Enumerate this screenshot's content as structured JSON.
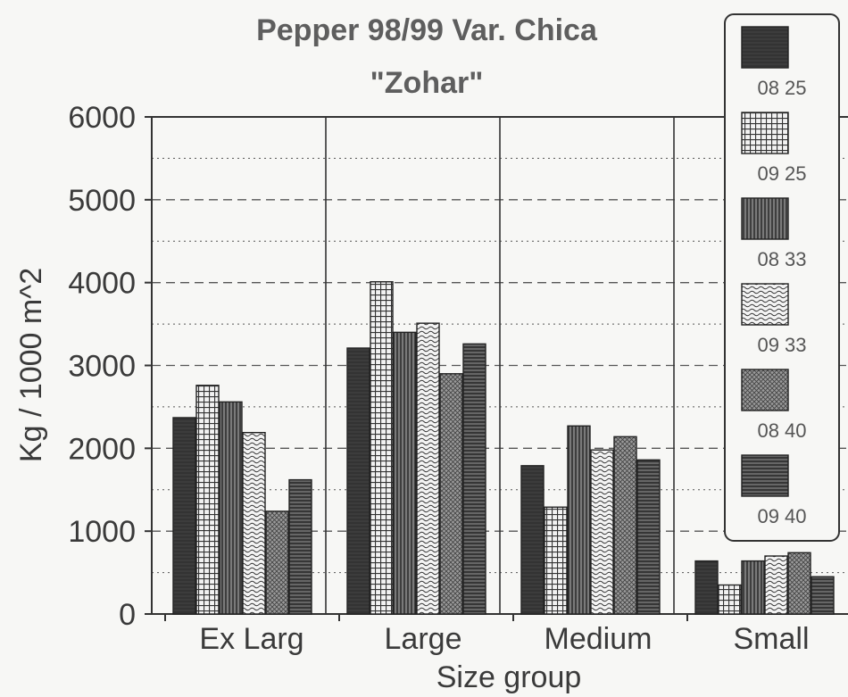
{
  "chart_data": {
    "type": "bar",
    "title": "Pepper 98/99 Var. Chica",
    "subtitle": "\"Zohar\"",
    "xlabel": "Size group",
    "ylabel": "Kg / 1000 m^2",
    "ylim": [
      0,
      6000
    ],
    "yticks": [
      "0",
      "1000",
      "2000",
      "3000",
      "4000",
      "5000",
      "6000"
    ],
    "categories": [
      "Ex Larg",
      "Large",
      "Medium",
      "Small"
    ],
    "series": [
      {
        "name": "08 25",
        "values": [
          2370,
          3210,
          1790,
          640
        ],
        "pattern": "solid"
      },
      {
        "name": "09 25",
        "values": [
          2760,
          4010,
          1290,
          350
        ],
        "pattern": "grid"
      },
      {
        "name": "08 33",
        "values": [
          2560,
          3400,
          2270,
          640
        ],
        "pattern": "vlines"
      },
      {
        "name": "09 33",
        "values": [
          2190,
          3510,
          1980,
          700
        ],
        "pattern": "wavy"
      },
      {
        "name": "08 40",
        "values": [
          1240,
          2900,
          2140,
          740
        ],
        "pattern": "dots"
      },
      {
        "name": "09 40",
        "values": [
          1620,
          3260,
          1860,
          450
        ],
        "pattern": "hlines"
      }
    ],
    "grid": true,
    "legend_position": "right"
  }
}
